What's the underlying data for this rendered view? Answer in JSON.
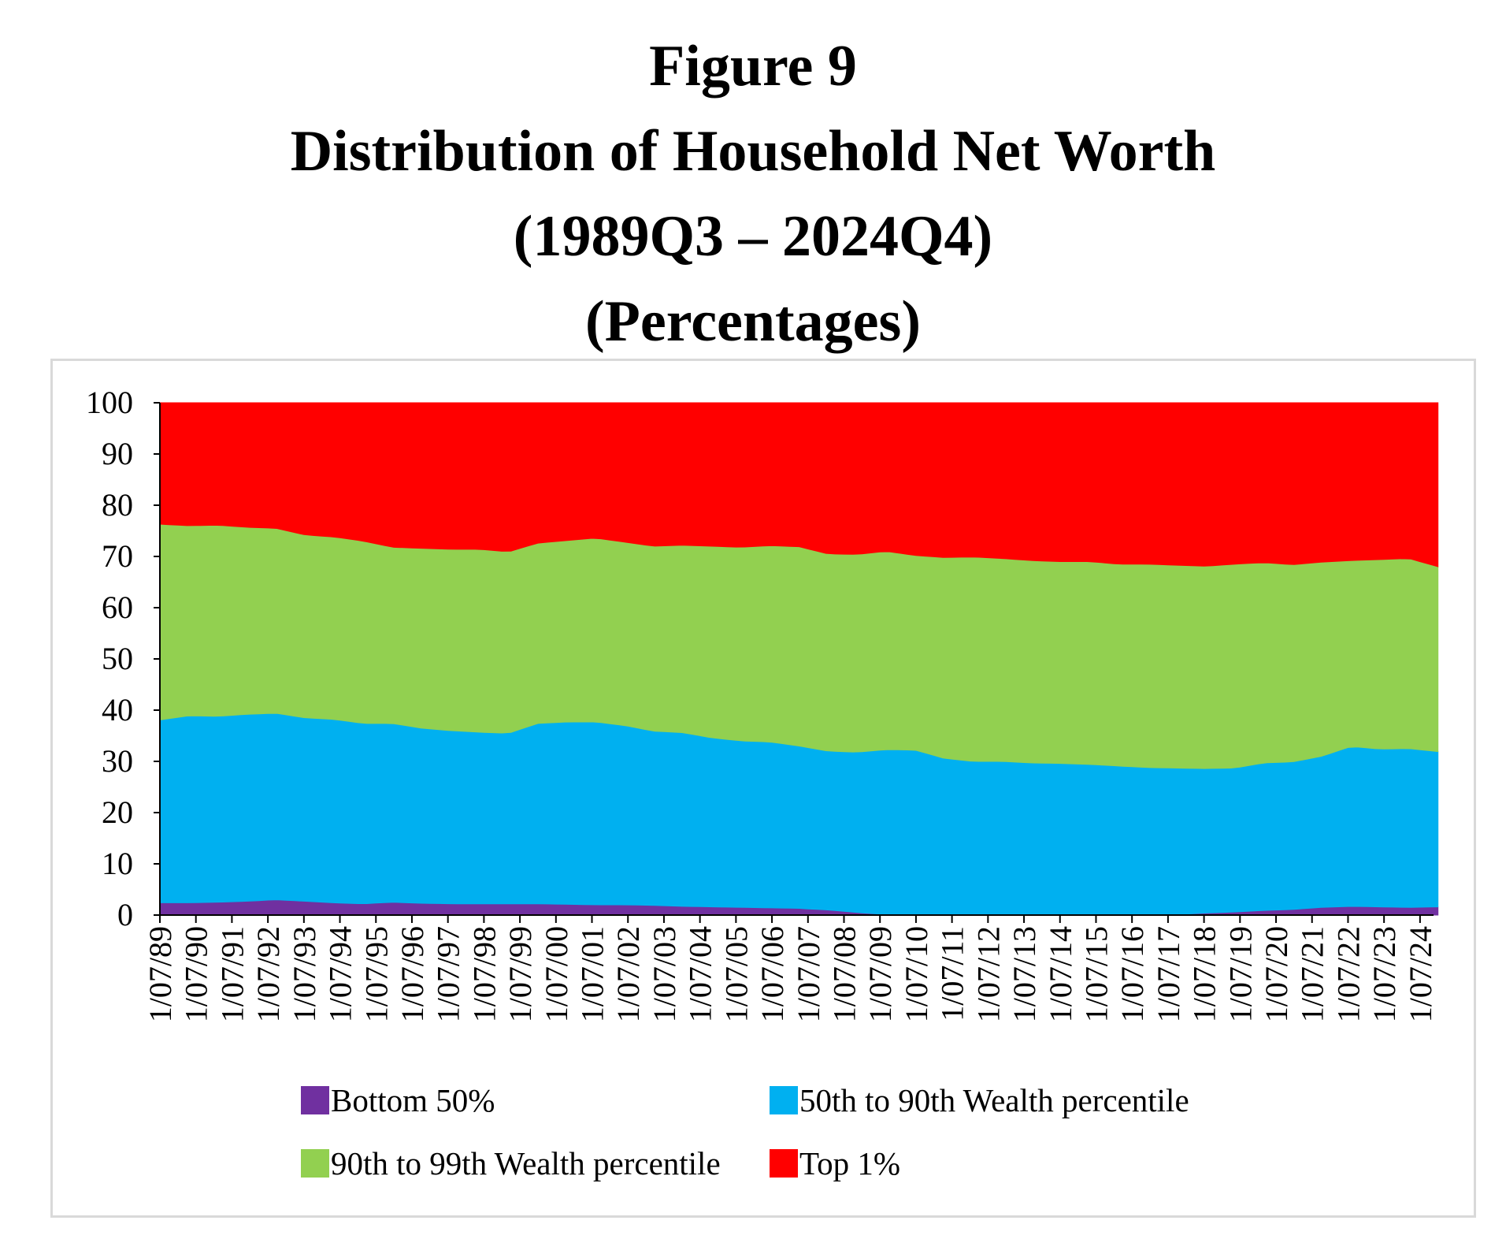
{
  "title": {
    "line1": "Figure 9",
    "line2": "Distribution of Household Net Worth",
    "line3": "(1989Q3 – 2024Q4)",
    "line4": "(Percentages)"
  },
  "chart_data": {
    "type": "area",
    "stacked": true,
    "x_label": "",
    "y_label": "",
    "ylim": [
      0,
      100
    ],
    "y_ticks": [
      0,
      10,
      20,
      30,
      40,
      50,
      60,
      70,
      80,
      90,
      100
    ],
    "x_tick_labels": [
      "1/07/89",
      "1/07/90",
      "1/07/91",
      "1/07/92",
      "1/07/93",
      "1/07/94",
      "1/07/95",
      "1/07/96",
      "1/07/97",
      "1/07/98",
      "1/07/99",
      "1/07/00",
      "1/07/01",
      "1/07/02",
      "1/07/03",
      "1/07/04",
      "1/07/05",
      "1/07/06",
      "1/07/07",
      "1/07/08",
      "1/07/09",
      "1/07/10",
      "1/07/11",
      "1/07/12",
      "1/07/13",
      "1/07/14",
      "1/07/15",
      "1/07/16",
      "1/07/17",
      "1/07/18",
      "1/07/19",
      "1/07/20",
      "1/07/21",
      "1/07/22",
      "1/07/23",
      "1/07/24"
    ],
    "x_range": [
      "1989Q3",
      "2024Q4"
    ],
    "grid": false,
    "legend_position": "bottom",
    "series": [
      {
        "name": "Bottom 50%",
        "color": "#7030A0",
        "values": [
          2.4,
          2.4,
          2.5,
          2.7,
          3.0,
          2.7,
          2.4,
          2.2,
          2.5,
          2.3,
          2.2,
          2.2,
          2.2,
          2.2,
          2.1,
          2.0,
          2.0,
          1.9,
          1.7,
          1.6,
          1.5,
          1.4,
          1.3,
          1.0,
          0.5,
          0.1,
          0.0,
          0.0,
          0.0,
          0.0,
          0.0,
          0.0,
          0.0,
          0.0,
          0.0,
          0.1,
          0.4,
          0.6,
          0.9,
          1.1,
          1.5,
          1.7,
          1.6,
          1.5,
          1.6
        ]
      },
      {
        "name": "50th to 90th Wealth percentile",
        "color": "#00B0F0",
        "values": [
          35.7,
          36.5,
          36.3,
          36.5,
          36.4,
          35.8,
          35.8,
          35.2,
          34.9,
          34.2,
          33.8,
          33.5,
          33.3,
          35.2,
          35.6,
          35.7,
          35.0,
          34.0,
          33.9,
          33.0,
          32.5,
          32.4,
          31.7,
          31.0,
          31.3,
          32.2,
          32.2,
          30.6,
          30.0,
          30.0,
          29.7,
          29.6,
          29.4,
          29.1,
          28.8,
          28.6,
          28.2,
          28.1,
          28.8,
          28.8,
          29.5,
          31.2,
          30.8,
          31.0,
          30.3
        ]
      },
      {
        "name": "90th to 99th Wealth percentile",
        "color": "#92D050",
        "values": [
          38.2,
          37.1,
          37.3,
          36.5,
          36.1,
          35.7,
          35.6,
          35.6,
          34.4,
          35.1,
          35.4,
          35.7,
          35.4,
          35.2,
          35.4,
          35.9,
          35.8,
          36.1,
          36.6,
          37.4,
          37.8,
          38.3,
          38.9,
          38.5,
          38.6,
          38.7,
          38.0,
          39.2,
          39.9,
          39.6,
          39.5,
          39.4,
          39.6,
          39.4,
          39.7,
          39.6,
          39.5,
          39.8,
          39.1,
          38.5,
          37.9,
          36.3,
          37.0,
          37.1,
          36.1
        ]
      },
      {
        "name": "Top 1%",
        "color": "#FF0000",
        "values": [
          23.7,
          24.0,
          23.9,
          24.3,
          24.5,
          25.8,
          26.2,
          27.0,
          28.2,
          28.4,
          28.6,
          28.6,
          29.1,
          27.4,
          26.9,
          26.4,
          27.2,
          28.0,
          27.8,
          28.0,
          28.2,
          27.9,
          28.1,
          29.5,
          29.6,
          29.0,
          29.8,
          30.2,
          30.1,
          30.4,
          30.8,
          31.0,
          31.0,
          31.5,
          31.5,
          31.7,
          31.9,
          31.5,
          31.2,
          31.6,
          31.1,
          30.8,
          30.6,
          30.4,
          32.0
        ]
      }
    ],
    "x_points": [
      1989.5,
      1990.0,
      1990.5,
      1991.0,
      1991.5,
      1992.0,
      1992.5,
      1993.0,
      1993.5,
      1994.0,
      1994.5,
      1995.0,
      1995.5,
      1996.0,
      1996.5,
      1997.0,
      1997.5,
      1998.0,
      1998.5,
      1999.0,
      1999.5,
      2000.0,
      2000.5,
      2001.0,
      2001.5,
      2002.0,
      2002.5,
      2003.0,
      2003.5,
      2004.0,
      2004.5,
      2005.0,
      2005.5,
      2006.0,
      2006.5,
      2007.0,
      2007.5,
      2008.0,
      2008.5,
      2009.0,
      2009.5,
      2010.0,
      2010.5,
      2011.0,
      2024.9
    ]
  },
  "legend": {
    "items": [
      {
        "label": "Bottom 50%",
        "color": "#7030A0"
      },
      {
        "label": "50th to 90th Wealth percentile",
        "color": "#00B0F0"
      },
      {
        "label": "90th to 99th Wealth percentile",
        "color": "#92D050"
      },
      {
        "label": "Top 1%",
        "color": "#FF0000"
      }
    ]
  }
}
